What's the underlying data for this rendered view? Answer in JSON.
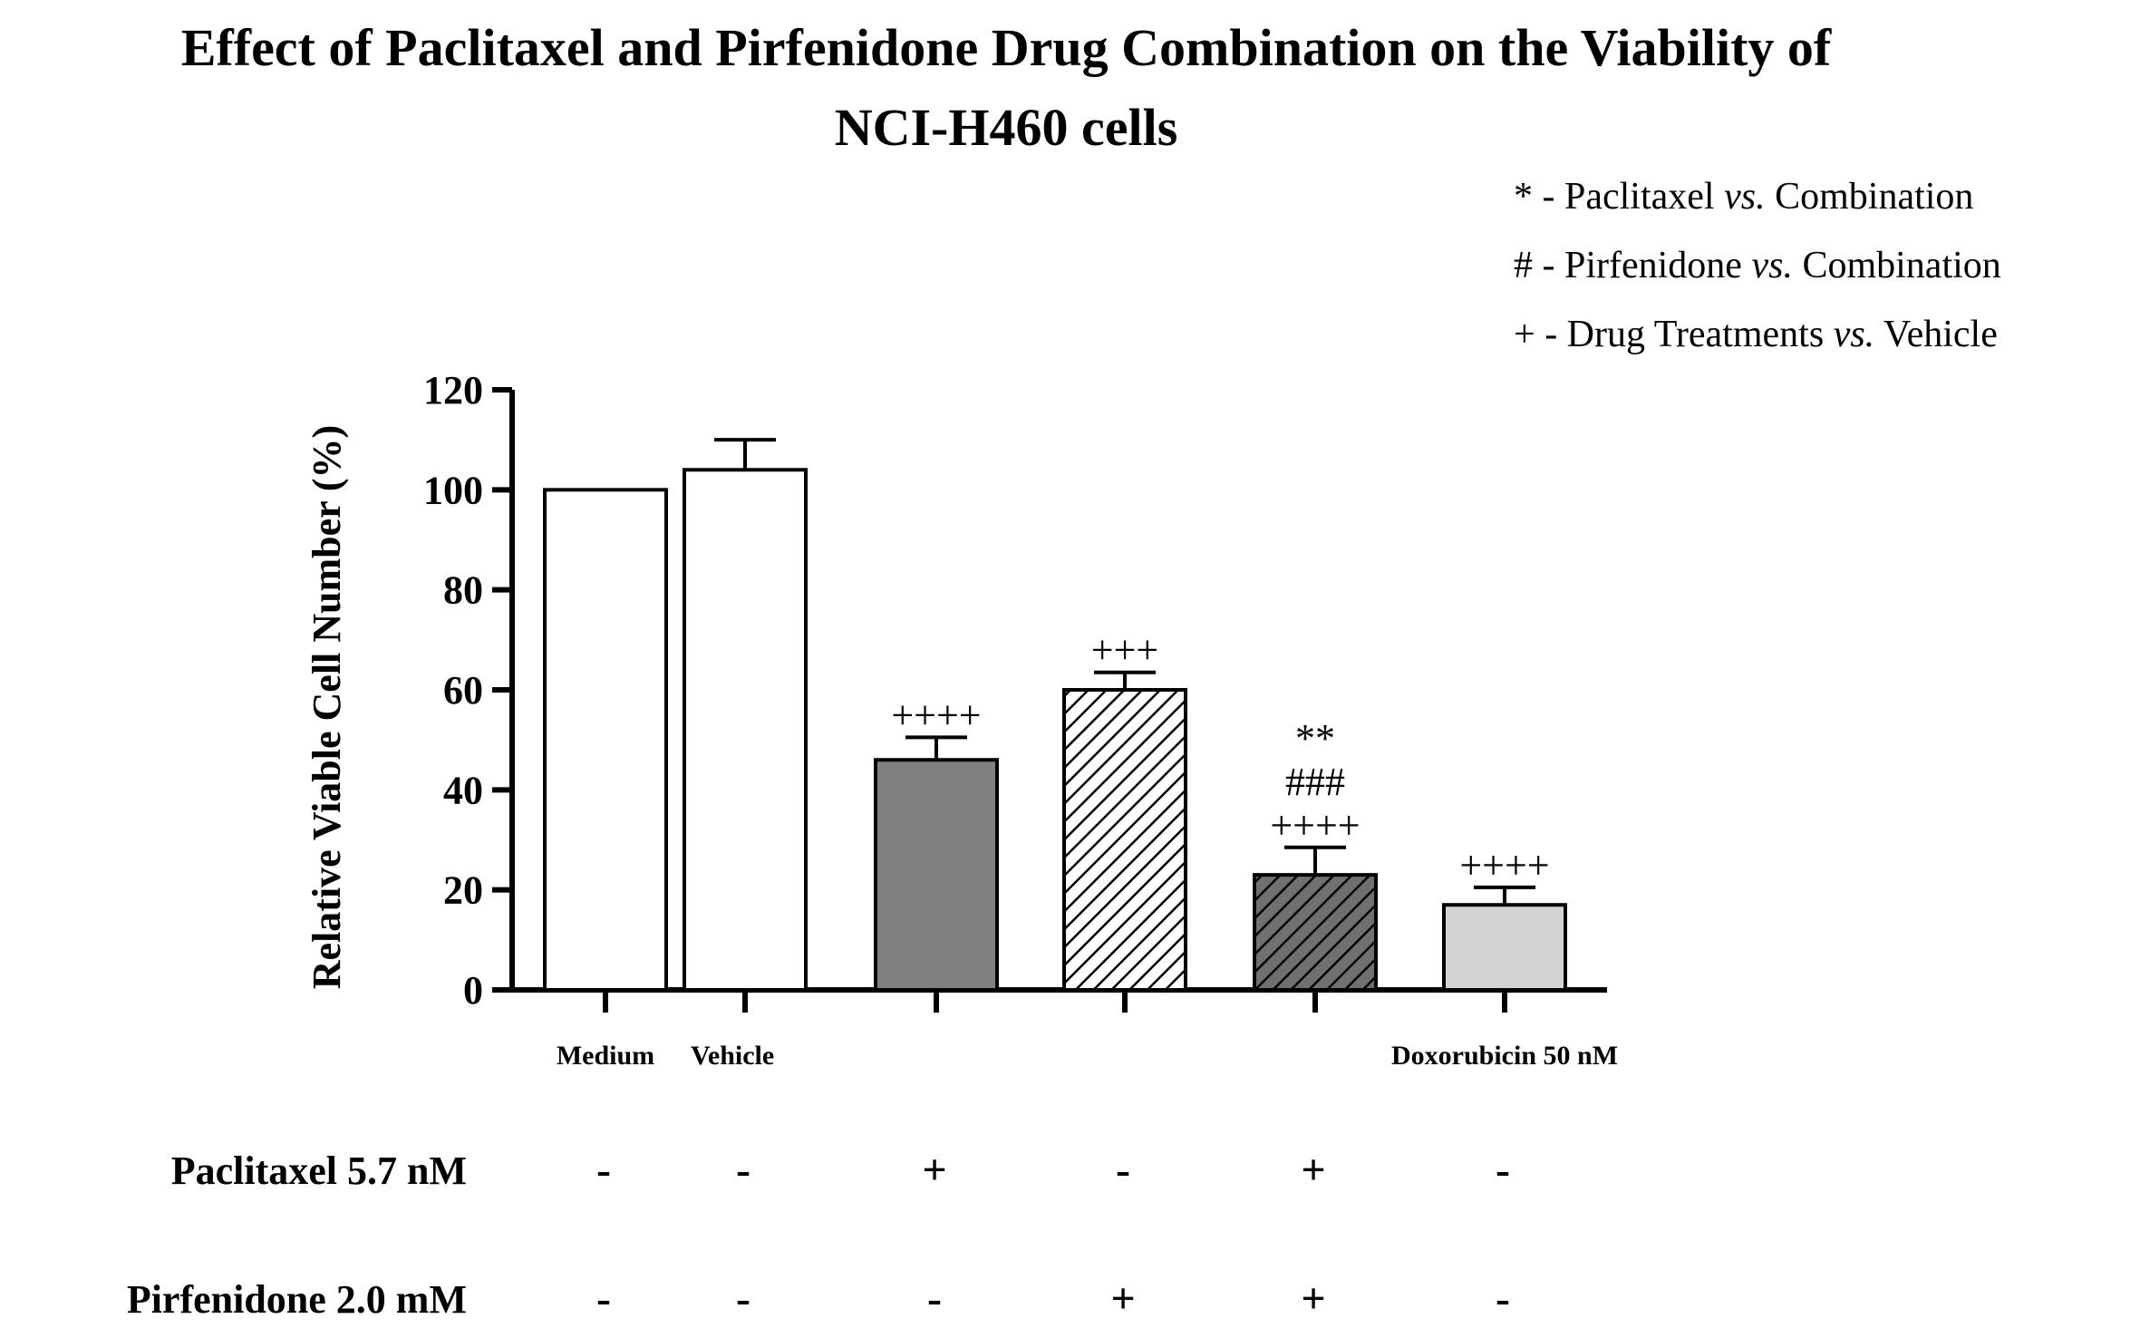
{
  "chart_data": {
    "type": "bar",
    "title_lines": [
      "Effect of Paclitaxel and Pirfenidone Drug Combination on the Viability of",
      "NCI-H460 cells"
    ],
    "ylabel": "Relative Viable Cell Number (%)",
    "xlabel": "",
    "ylim": [
      0,
      120
    ],
    "yticks": [
      "0",
      "20",
      "40",
      "60",
      "80",
      "100",
      "120"
    ],
    "legend": [
      {
        "symbol": "*",
        "before": " - Paclitaxel ",
        "vs": "vs.",
        "after": " Combination"
      },
      {
        "symbol": "#",
        "before": " - Pirfenidone ",
        "vs": "vs.",
        "after": " Combination"
      },
      {
        "symbol": "+",
        "before": " - Drug Treatments ",
        "vs": "vs.",
        "after": " Vehicle"
      }
    ],
    "categories": [
      "Medium",
      "Vehicle",
      "",
      "",
      "",
      "Doxorubicin 50 nM"
    ],
    "values": [
      100,
      104,
      46,
      60,
      23,
      17
    ],
    "errors": [
      0,
      6,
      4.5,
      3.5,
      5.5,
      3.5
    ],
    "fills": [
      "white",
      "white",
      "gray",
      "hatch-light",
      "hatch-dark",
      "lightgray"
    ],
    "annotations": [
      [],
      [],
      [
        "++++"
      ],
      [
        "+++"
      ],
      [
        "**",
        "###",
        "++++"
      ],
      [
        "++++"
      ]
    ],
    "conditions": [
      {
        "label": "Paclitaxel 5.7 nM",
        "signs": [
          "-",
          "-",
          "+",
          "-",
          "+",
          "-"
        ]
      },
      {
        "label": "Pirfenidone 2.0 mM",
        "signs": [
          "-",
          "-",
          "-",
          "+",
          "+",
          "-"
        ]
      }
    ],
    "colors": {
      "gray": "#808080",
      "lightgray": "#d3d3d3",
      "hatch_light_bg": "#ffffff",
      "hatch_dark_bg": "#707070",
      "axis": "#000000"
    }
  }
}
